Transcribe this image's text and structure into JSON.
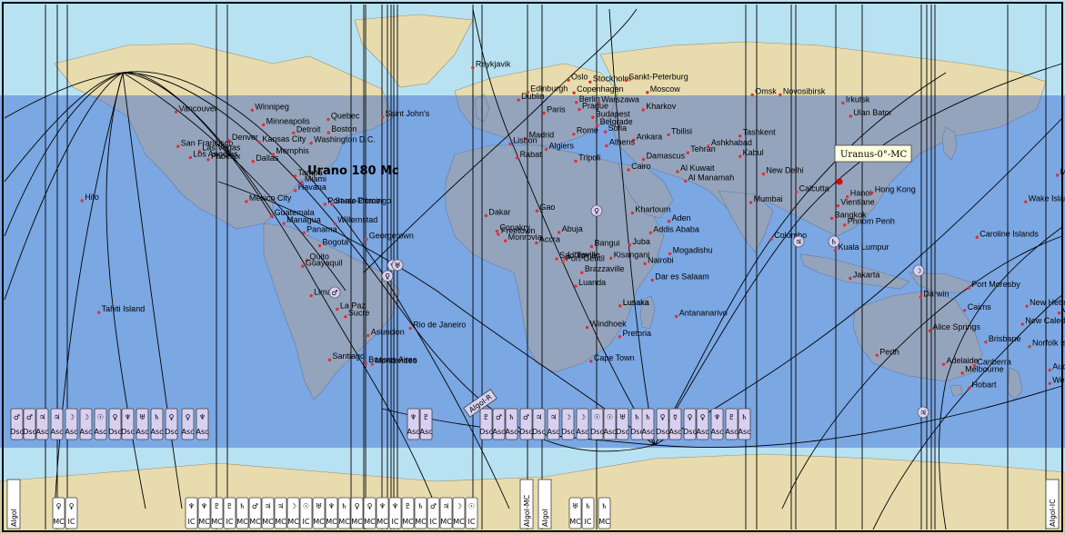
{
  "map": {
    "colors": {
      "ocean": "#b8e2f2",
      "ocean_band": "#6b9ee0",
      "land": "#e8dcae",
      "land_band": "#8f8c98",
      "line": "#000000",
      "tag_fill": "#d8d0f0",
      "city_dot": "#e03030"
    },
    "annotation_label": "Urano 180 Mc",
    "tooltip_label": "Uranus-0°-MC",
    "cities": [
      {
        "name": "Reykjavik",
        "lon": -21.9,
        "lat": 64.1
      },
      {
        "name": "Oslo",
        "lon": 10.7,
        "lat": 59.9
      },
      {
        "name": "Stockholm",
        "lon": 18.1,
        "lat": 59.3
      },
      {
        "name": "Sankt-Peterburg",
        "lon": 30.3,
        "lat": 59.9
      },
      {
        "name": "Edinburgh",
        "lon": -3.2,
        "lat": 55.9
      },
      {
        "name": "Dublin",
        "lon": -6.3,
        "lat": 53.3
      },
      {
        "name": "Copenhagen",
        "lon": 12.6,
        "lat": 55.7
      },
      {
        "name": "Berlin",
        "lon": 13.4,
        "lat": 52.5
      },
      {
        "name": "Warszawa",
        "lon": 21.0,
        "lat": 52.2
      },
      {
        "name": "Moscow",
        "lon": 37.6,
        "lat": 55.8
      },
      {
        "name": "Paris",
        "lon": 2.35,
        "lat": 48.9
      },
      {
        "name": "Prague",
        "lon": 14.4,
        "lat": 50.1
      },
      {
        "name": "Kharkov",
        "lon": 36.2,
        "lat": 50.0
      },
      {
        "name": "Budapest",
        "lon": 19.0,
        "lat": 47.5
      },
      {
        "name": "Belgrade",
        "lon": 20.5,
        "lat": 44.8
      },
      {
        "name": "Sofia",
        "lon": 23.3,
        "lat": 42.7
      },
      {
        "name": "Madrid",
        "lon": -3.7,
        "lat": 40.4
      },
      {
        "name": "Rome",
        "lon": 12.5,
        "lat": 41.9
      },
      {
        "name": "Ankara",
        "lon": 32.9,
        "lat": 39.9
      },
      {
        "name": "Tbilisi",
        "lon": 44.8,
        "lat": 41.7
      },
      {
        "name": "Athens",
        "lon": 23.7,
        "lat": 38.0
      },
      {
        "name": "Lisbon",
        "lon": -9.1,
        "lat": 38.7
      },
      {
        "name": "Algiers",
        "lon": 3.1,
        "lat": 36.8
      },
      {
        "name": "Rabat",
        "lon": -6.8,
        "lat": 34.0
      },
      {
        "name": "Tripoli",
        "lon": 13.2,
        "lat": 32.9
      },
      {
        "name": "Damascus",
        "lon": 36.3,
        "lat": 33.5
      },
      {
        "name": "Cairo",
        "lon": 31.2,
        "lat": 30.0
      },
      {
        "name": "Tehran",
        "lon": 51.4,
        "lat": 35.7
      },
      {
        "name": "Ashkhabad",
        "lon": 58.4,
        "lat": 37.9
      },
      {
        "name": "Tashkent",
        "lon": 69.2,
        "lat": 41.3
      },
      {
        "name": "Kabul",
        "lon": 69.2,
        "lat": 34.5
      },
      {
        "name": "Al Kuwait",
        "lon": 47.9,
        "lat": 29.4
      },
      {
        "name": "Al Manamah",
        "lon": 50.6,
        "lat": 26.2
      },
      {
        "name": "New Delhi",
        "lon": 77.2,
        "lat": 28.6
      },
      {
        "name": "Omsk",
        "lon": 73.4,
        "lat": 55.0
      },
      {
        "name": "Novosibirsk",
        "lon": 82.9,
        "lat": 55.0
      },
      {
        "name": "Irkutsk",
        "lon": 104.3,
        "lat": 52.3
      },
      {
        "name": "Ulan Bator",
        "lon": 106.9,
        "lat": 47.9
      },
      {
        "name": "Calcutta",
        "lon": 88.4,
        "lat": 22.6
      },
      {
        "name": "Mumbai",
        "lon": 72.9,
        "lat": 19.1
      },
      {
        "name": "Hanoi",
        "lon": 105.8,
        "lat": 21.0
      },
      {
        "name": "Hong Kong",
        "lon": 114.2,
        "lat": 22.3
      },
      {
        "name": "Vientiane",
        "lon": 102.6,
        "lat": 18.0
      },
      {
        "name": "Bangkok",
        "lon": 100.5,
        "lat": 13.8
      },
      {
        "name": "Phnom Penh",
        "lon": 104.9,
        "lat": 11.6
      },
      {
        "name": "Colombo",
        "lon": 79.9,
        "lat": 6.9
      },
      {
        "name": "Kuala Lumpur",
        "lon": 101.7,
        "lat": 3.1
      },
      {
        "name": "Jakarta",
        "lon": 106.8,
        "lat": -6.2
      },
      {
        "name": "Darwin",
        "lon": 130.8,
        "lat": -12.5
      },
      {
        "name": "Cairns",
        "lon": 145.8,
        "lat": -16.9
      },
      {
        "name": "Alice Springs",
        "lon": 133.9,
        "lat": -23.7
      },
      {
        "name": "Brisbane",
        "lon": 153.0,
        "lat": -27.5
      },
      {
        "name": "Perth",
        "lon": 115.9,
        "lat": -31.9
      },
      {
        "name": "Adelaide",
        "lon": 138.6,
        "lat": -34.9
      },
      {
        "name": "Melbourne",
        "lon": 145.0,
        "lat": -37.8
      },
      {
        "name": "Canberra",
        "lon": 149.1,
        "lat": -35.3
      },
      {
        "name": "Hobart",
        "lon": 147.3,
        "lat": -42.9
      },
      {
        "name": "Port Moresby",
        "lon": 147.2,
        "lat": -9.4
      },
      {
        "name": "Caroline Islands",
        "lon": 150.0,
        "lat": 7.5
      },
      {
        "name": "Wake Island",
        "lon": 166.6,
        "lat": 19.3
      },
      {
        "name": "Midway",
        "lon": 177.4,
        "lat": 28.2
      },
      {
        "name": "New Hebrides Islands",
        "lon": 167.0,
        "lat": -15.5
      },
      {
        "name": "Viti Levu Is",
        "lon": 178.0,
        "lat": -17.8
      },
      {
        "name": "New Caledonia Island",
        "lon": 165.5,
        "lat": -21.5
      },
      {
        "name": "Norfolk Island",
        "lon": 167.9,
        "lat": -29.0
      },
      {
        "name": "Auckland",
        "lon": 174.8,
        "lat": -36.8
      },
      {
        "name": "Wellington",
        "lon": 174.8,
        "lat": -41.3
      },
      {
        "name": "Gao",
        "lon": -0.04,
        "lat": 16.3
      },
      {
        "name": "Dakar",
        "lon": -17.4,
        "lat": 14.7
      },
      {
        "name": "Conakry",
        "lon": -13.7,
        "lat": 9.5
      },
      {
        "name": "Freetown",
        "lon": -13.2,
        "lat": 8.5
      },
      {
        "name": "Monrovia",
        "lon": -10.8,
        "lat": 6.3
      },
      {
        "name": "Khartoum",
        "lon": 32.5,
        "lat": 15.6
      },
      {
        "name": "Aden",
        "lon": 45.0,
        "lat": 12.8
      },
      {
        "name": "Addis Ababa",
        "lon": 38.7,
        "lat": 9.0
      },
      {
        "name": "Abuja",
        "lon": 7.5,
        "lat": 9.1
      },
      {
        "name": "Bangui",
        "lon": 18.6,
        "lat": 4.4
      },
      {
        "name": "Juba",
        "lon": 31.6,
        "lat": 4.9
      },
      {
        "name": "Accra",
        "lon": -0.2,
        "lat": 5.6
      },
      {
        "name": "Sao Tome",
        "lon": 6.7,
        "lat": 0.3
      },
      {
        "name": "Libreville",
        "lon": 9.5,
        "lat": 0.4
      },
      {
        "name": "Port-Gentil",
        "lon": 8.8,
        "lat": -0.7
      },
      {
        "name": "Kisangani",
        "lon": 25.2,
        "lat": 0.5
      },
      {
        "name": "Nairobi",
        "lon": 36.8,
        "lat": -1.3
      },
      {
        "name": "Mogadishu",
        "lon": 45.3,
        "lat": 2.0
      },
      {
        "name": "Brazzaville",
        "lon": 15.3,
        "lat": -4.3
      },
      {
        "name": "Luanda",
        "lon": 13.2,
        "lat": -8.8
      },
      {
        "name": "Lusaka",
        "lon": 28.3,
        "lat": -15.4
      },
      {
        "name": "Dar es Salaam",
        "lon": 39.3,
        "lat": -6.8
      },
      {
        "name": "Lusaka",
        "lon": 28.3,
        "lat": -15.4
      },
      {
        "name": "Antananarivo",
        "lon": 47.5,
        "lat": -18.9
      },
      {
        "name": "Windhoek",
        "lon": 17.1,
        "lat": -22.6
      },
      {
        "name": "Pretoria",
        "lon": 28.2,
        "lat": -25.7
      },
      {
        "name": "Cape Town",
        "lon": 18.4,
        "lat": -33.9
      },
      {
        "name": "Vancouver",
        "lon": -123.1,
        "lat": 49.3
      },
      {
        "name": "Winnipeg",
        "lon": -97.1,
        "lat": 49.9
      },
      {
        "name": "Quebec",
        "lon": -71.2,
        "lat": 46.8
      },
      {
        "name": "Saint John's",
        "lon": -52.7,
        "lat": 47.6
      },
      {
        "name": "Minneapolis",
        "lon": -93.3,
        "lat": 45.0
      },
      {
        "name": "Denver",
        "lon": -105.0,
        "lat": 39.7
      },
      {
        "name": "Detroit",
        "lon": -83.0,
        "lat": 42.3
      },
      {
        "name": "Boston",
        "lon": -71.1,
        "lat": 42.4
      },
      {
        "name": "Kansas City",
        "lon": -94.6,
        "lat": 39.1
      },
      {
        "name": "Washington D.C.",
        "lon": -77.0,
        "lat": 38.9
      },
      {
        "name": "San Francisco",
        "lon": -122.4,
        "lat": 37.8
      },
      {
        "name": "Las Vegas",
        "lon": -115.1,
        "lat": 36.2
      },
      {
        "name": "Memphis",
        "lon": -90.0,
        "lat": 35.1
      },
      {
        "name": "Phoenix",
        "lon": -112.1,
        "lat": 33.4
      },
      {
        "name": "Los Angeles",
        "lon": -118.2,
        "lat": 34.1
      },
      {
        "name": "Dallas",
        "lon": -96.8,
        "lat": 32.8
      },
      {
        "name": "Tampa",
        "lon": -82.5,
        "lat": 27.9
      },
      {
        "name": "Miami",
        "lon": -80.2,
        "lat": 25.8
      },
      {
        "name": "Havana",
        "lon": -82.4,
        "lat": 23.1
      },
      {
        "name": "Mexico City",
        "lon": -99.1,
        "lat": 19.4
      },
      {
        "name": "Port-au-Prince",
        "lon": -72.3,
        "lat": 18.5
      },
      {
        "name": "Santo Domingo",
        "lon": -69.9,
        "lat": 18.5
      },
      {
        "name": "Guatemala",
        "lon": -90.5,
        "lat": 14.6
      },
      {
        "name": "Willemstad",
        "lon": -68.9,
        "lat": 12.1
      },
      {
        "name": "Managua",
        "lon": -86.3,
        "lat": 12.1
      },
      {
        "name": "Panama",
        "lon": -79.5,
        "lat": 9.0
      },
      {
        "name": "Bogota",
        "lon": -74.1,
        "lat": 4.7
      },
      {
        "name": "Georgetown",
        "lon": -58.2,
        "lat": 6.8
      },
      {
        "name": "Quito",
        "lon": -78.5,
        "lat": -0.2
      },
      {
        "name": "Guayaquil",
        "lon": -79.9,
        "lat": -2.2
      },
      {
        "name": "Lima",
        "lon": -77.0,
        "lat": -12.0
      },
      {
        "name": "La Paz",
        "lon": -68.1,
        "lat": -16.5
      },
      {
        "name": "Sucre",
        "lon": -65.3,
        "lat": -19.0
      },
      {
        "name": "Rio de Janeiro",
        "lon": -43.2,
        "lat": -22.9
      },
      {
        "name": "Asuncion",
        "lon": -57.6,
        "lat": -25.3
      },
      {
        "name": "Santiago",
        "lon": -70.7,
        "lat": -33.4
      },
      {
        "name": "Buenos Aires",
        "lon": -58.4,
        "lat": -34.6
      },
      {
        "name": "Montevideo",
        "lon": -56.2,
        "lat": -34.9
      },
      {
        "name": "Hilo",
        "lon": -155.1,
        "lat": 19.7
      },
      {
        "name": "Tahiti Island",
        "lon": -149.4,
        "lat": -17.6
      }
    ],
    "asc_dsc_tags": [
      {
        "glyph": "♂",
        "word": "Dsc"
      },
      {
        "glyph": "♂",
        "word": "Dsc"
      },
      {
        "glyph": "♃",
        "word": "Asc"
      },
      {
        "glyph": "♃",
        "word": "Asc"
      },
      {
        "glyph": "☽",
        "word": "Asc"
      },
      {
        "glyph": "☽",
        "word": "Asc"
      },
      {
        "glyph": "☉",
        "word": "Asc"
      },
      {
        "glyph": "♀",
        "word": "Dsc"
      },
      {
        "glyph": "♆",
        "word": "Dsc"
      },
      {
        "glyph": "♅",
        "word": "Asc"
      },
      {
        "glyph": "♄",
        "word": "Asc"
      },
      {
        "glyph": "♀",
        "word": "Dsc"
      },
      {
        "glyph": "♀",
        "word": "Asc"
      },
      {
        "glyph": "♆",
        "word": "Asc"
      },
      {
        "glyph": "♆",
        "word": "Asc"
      },
      {
        "glyph": "♇",
        "word": "Asc"
      },
      {
        "glyph": "♇",
        "word": "Dsc"
      },
      {
        "glyph": "♂",
        "word": "Asc"
      },
      {
        "glyph": "♄",
        "word": "Asc"
      },
      {
        "glyph": "♂",
        "word": "Dsc"
      },
      {
        "glyph": "♃",
        "word": "Dsc"
      },
      {
        "glyph": "♃",
        "word": "Asc"
      },
      {
        "glyph": "☽",
        "word": "Dsc"
      },
      {
        "glyph": "☽",
        "word": "Asc"
      },
      {
        "glyph": "☉",
        "word": "Dsc"
      },
      {
        "glyph": "☉",
        "word": "Asc"
      },
      {
        "glyph": "♅",
        "word": "Dsc"
      },
      {
        "glyph": "♄",
        "word": "Dsc"
      },
      {
        "glyph": "♄",
        "word": "Asc"
      },
      {
        "glyph": "♀",
        "word": "Dsc"
      },
      {
        "glyph": "☿",
        "word": "Asc"
      },
      {
        "glyph": "♀",
        "word": "Dsc"
      },
      {
        "glyph": "♀",
        "word": "Asc"
      },
      {
        "glyph": "♆",
        "word": "Asc"
      },
      {
        "glyph": "♇",
        "word": "Asc"
      },
      {
        "glyph": "♄",
        "word": "Asc"
      }
    ],
    "mc_ic_tags": [
      {
        "glyph": "♀",
        "word": "MC"
      },
      {
        "glyph": "♀",
        "word": "IC"
      },
      {
        "glyph": "♆",
        "word": "IC"
      },
      {
        "glyph": "♆",
        "word": "MC"
      },
      {
        "glyph": "♇",
        "word": "MC"
      },
      {
        "glyph": "♇",
        "word": "IC"
      },
      {
        "glyph": "♄",
        "word": "MC"
      },
      {
        "glyph": "♂",
        "word": "MC"
      },
      {
        "glyph": "♃",
        "word": "MC"
      },
      {
        "glyph": "♃",
        "word": "MC"
      },
      {
        "glyph": "☽",
        "word": "MC"
      },
      {
        "glyph": "☉",
        "word": "IC"
      },
      {
        "glyph": "♅",
        "word": "MC"
      },
      {
        "glyph": "♆",
        "word": "MC"
      },
      {
        "glyph": "♄",
        "word": "MC"
      },
      {
        "glyph": "♀",
        "word": "MC"
      },
      {
        "glyph": "♀",
        "word": "MC"
      },
      {
        "glyph": "♆",
        "word": "MC"
      },
      {
        "glyph": "♆",
        "word": "IC"
      },
      {
        "glyph": "♇",
        "word": "MC"
      },
      {
        "glyph": "♄",
        "word": "MC"
      },
      {
        "glyph": "♂",
        "word": "IC"
      },
      {
        "glyph": "♃",
        "word": "MC"
      },
      {
        "glyph": "☽",
        "word": "MC"
      },
      {
        "glyph": "☉",
        "word": "IC"
      },
      {
        "glyph": "♅",
        "word": "MC"
      },
      {
        "glyph": "♄",
        "word": "IC"
      },
      {
        "glyph": "♄",
        "word": "MC"
      }
    ],
    "vertical_labels": [
      "Algol",
      "Algol-MC",
      "Algol",
      "Algol-IC"
    ],
    "diag_tag": "Algol-R",
    "planet_markers": [
      {
        "glyph": "♂"
      },
      {
        "glyph": "♀"
      },
      {
        "glyph": "♆"
      },
      {
        "glyph": "♅"
      },
      {
        "glyph": "☽"
      },
      {
        "glyph": "♀"
      },
      {
        "glyph": "♄"
      },
      {
        "glyph": "♃"
      },
      {
        "glyph": "♃"
      }
    ]
  }
}
